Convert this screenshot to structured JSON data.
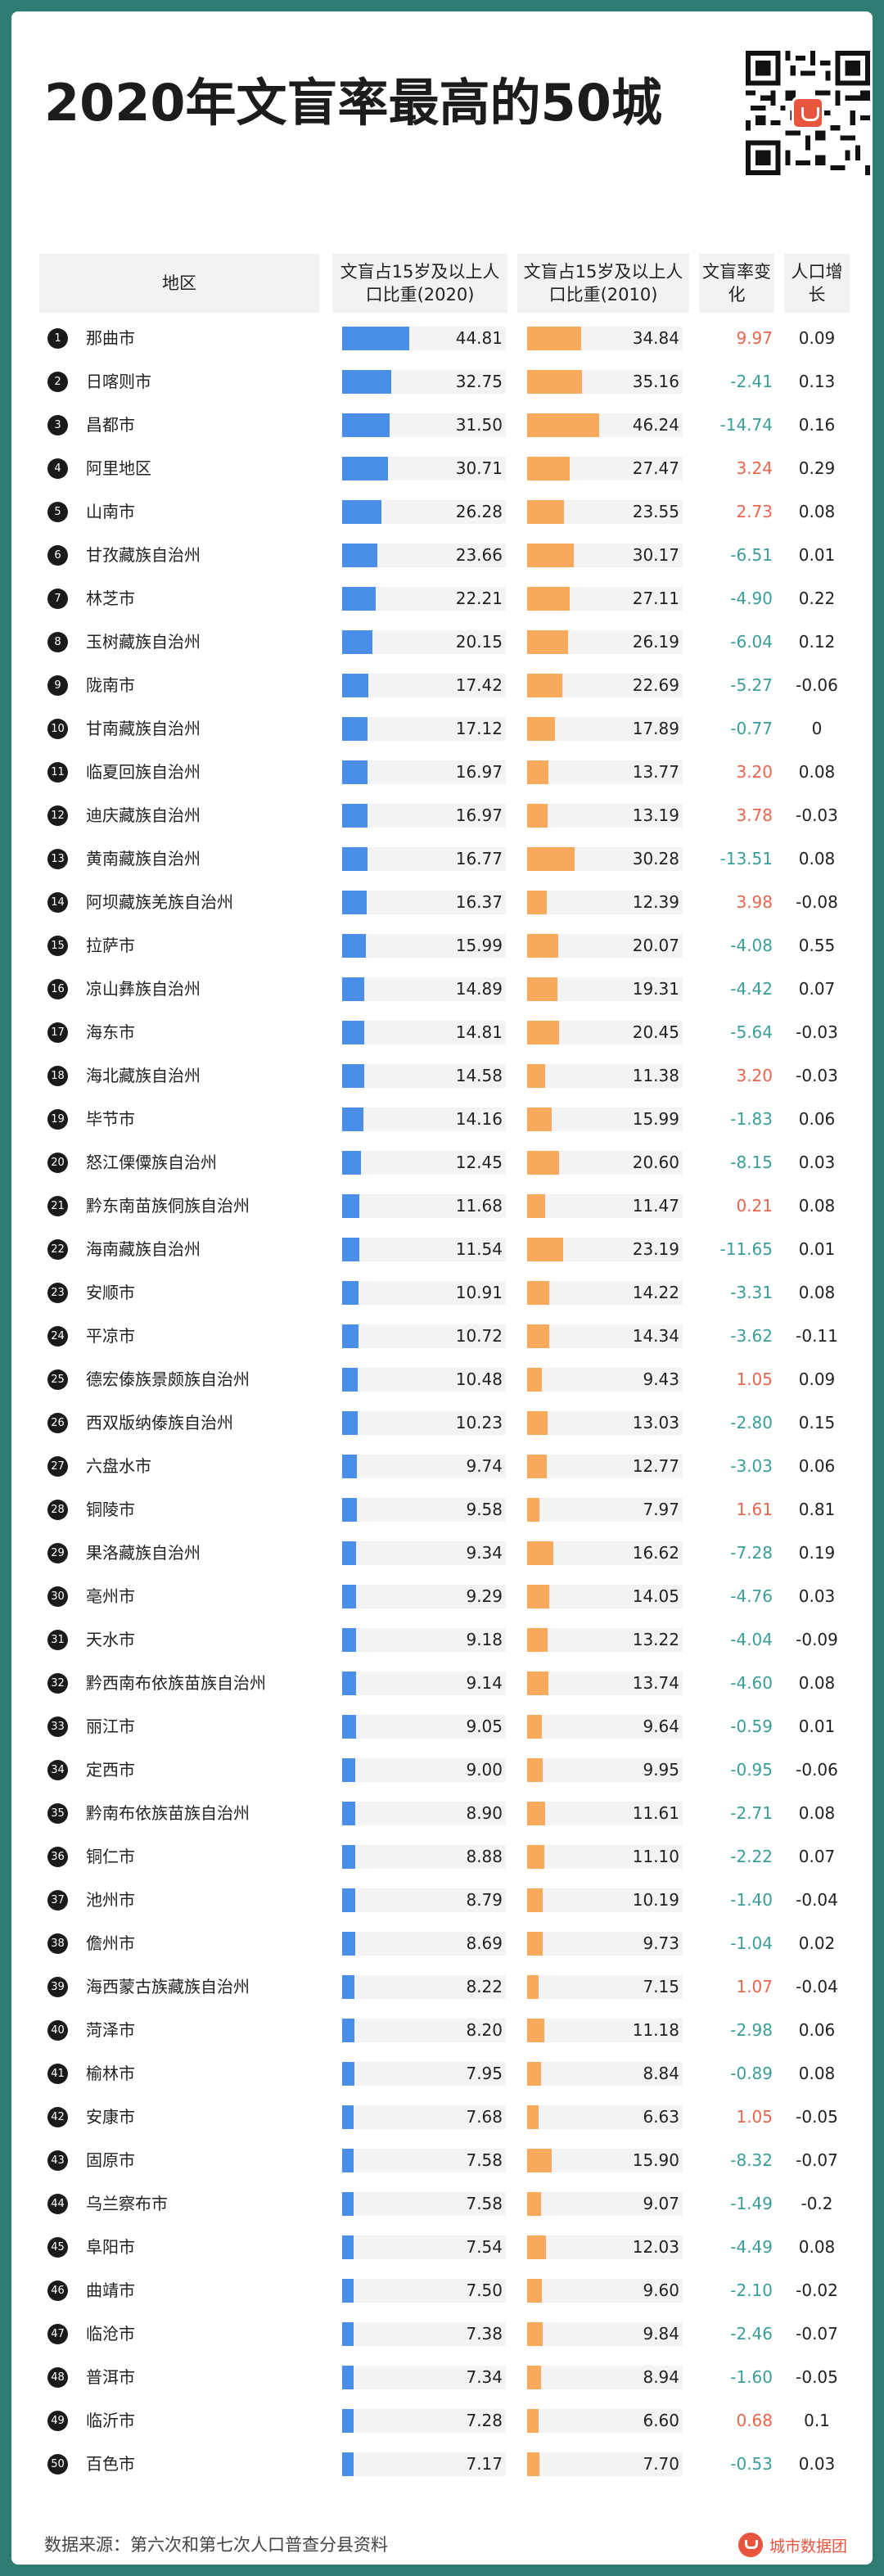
{
  "title": "2020年文盲率最高的50城",
  "table_headers": {
    "region": "地区",
    "rate_2020": "文盲占15岁及以上人口比重(2020)",
    "rate_2010": "文盲占15岁及以上人口比重(2010)",
    "change": "文盲率变化",
    "growth": "人口增长"
  },
  "footer": {
    "source": "数据来源：第六次和第七次人口普查分县资料",
    "brand": "城市数据团"
  },
  "icons": {
    "qr": "qr-code-icon",
    "brand": "city-data-team-logo-icon"
  },
  "colors": {
    "bar_2020": "#4a8fe7",
    "bar_2010": "#f9a95b",
    "negative_change": "#3a9e98",
    "positive_change": "#e8664e",
    "frame": "#2f7d72"
  },
  "chart_data": {
    "type": "table",
    "title": "2020年文盲率最高的50城",
    "columns": [
      "地区",
      "文盲占15岁及以上人口比重(2020)",
      "文盲占15岁及以上人口比重(2010)",
      "文盲率变化",
      "人口增长"
    ],
    "rows": [
      {
        "rank": "1",
        "city": "那曲市",
        "v2020": "44.81",
        "v2010": "34.84",
        "change": "9.97",
        "growth": "0.09"
      },
      {
        "rank": "2",
        "city": "日喀则市",
        "v2020": "32.75",
        "v2010": "35.16",
        "change": "-2.41",
        "growth": "0.13"
      },
      {
        "rank": "3",
        "city": "昌都市",
        "v2020": "31.50",
        "v2010": "46.24",
        "change": "-14.74",
        "growth": "0.16"
      },
      {
        "rank": "4",
        "city": "阿里地区",
        "v2020": "30.71",
        "v2010": "27.47",
        "change": "3.24",
        "growth": "0.29"
      },
      {
        "rank": "5",
        "city": "山南市",
        "v2020": "26.28",
        "v2010": "23.55",
        "change": "2.73",
        "growth": "0.08"
      },
      {
        "rank": "6",
        "city": "甘孜藏族自治州",
        "v2020": "23.66",
        "v2010": "30.17",
        "change": "-6.51",
        "growth": "0.01"
      },
      {
        "rank": "7",
        "city": "林芝市",
        "v2020": "22.21",
        "v2010": "27.11",
        "change": "-4.90",
        "growth": "0.22"
      },
      {
        "rank": "8",
        "city": "玉树藏族自治州",
        "v2020": "20.15",
        "v2010": "26.19",
        "change": "-6.04",
        "growth": "0.12"
      },
      {
        "rank": "9",
        "city": "陇南市",
        "v2020": "17.42",
        "v2010": "22.69",
        "change": "-5.27",
        "growth": "-0.06"
      },
      {
        "rank": "10",
        "city": "甘南藏族自治州",
        "v2020": "17.12",
        "v2010": "17.89",
        "change": "-0.77",
        "growth": "0"
      },
      {
        "rank": "11",
        "city": "临夏回族自治州",
        "v2020": "16.97",
        "v2010": "13.77",
        "change": "3.20",
        "growth": "0.08"
      },
      {
        "rank": "12",
        "city": "迪庆藏族自治州",
        "v2020": "16.97",
        "v2010": "13.19",
        "change": "3.78",
        "growth": "-0.03"
      },
      {
        "rank": "13",
        "city": "黄南藏族自治州",
        "v2020": "16.77",
        "v2010": "30.28",
        "change": "-13.51",
        "growth": "0.08"
      },
      {
        "rank": "14",
        "city": "阿坝藏族羌族自治州",
        "v2020": "16.37",
        "v2010": "12.39",
        "change": "3.98",
        "growth": "-0.08"
      },
      {
        "rank": "15",
        "city": "拉萨市",
        "v2020": "15.99",
        "v2010": "20.07",
        "change": "-4.08",
        "growth": "0.55"
      },
      {
        "rank": "16",
        "city": "凉山彝族自治州",
        "v2020": "14.89",
        "v2010": "19.31",
        "change": "-4.42",
        "growth": "0.07"
      },
      {
        "rank": "17",
        "city": "海东市",
        "v2020": "14.81",
        "v2010": "20.45",
        "change": "-5.64",
        "growth": "-0.03"
      },
      {
        "rank": "18",
        "city": "海北藏族自治州",
        "v2020": "14.58",
        "v2010": "11.38",
        "change": "3.20",
        "growth": "-0.03"
      },
      {
        "rank": "19",
        "city": "毕节市",
        "v2020": "14.16",
        "v2010": "15.99",
        "change": "-1.83",
        "growth": "0.06"
      },
      {
        "rank": "20",
        "city": "怒江傈僳族自治州",
        "v2020": "12.45",
        "v2010": "20.60",
        "change": "-8.15",
        "growth": "0.03"
      },
      {
        "rank": "21",
        "city": "黔东南苗族侗族自治州",
        "v2020": "11.68",
        "v2010": "11.47",
        "change": "0.21",
        "growth": "0.08"
      },
      {
        "rank": "22",
        "city": "海南藏族自治州",
        "v2020": "11.54",
        "v2010": "23.19",
        "change": "-11.65",
        "growth": "0.01"
      },
      {
        "rank": "23",
        "city": "安顺市",
        "v2020": "10.91",
        "v2010": "14.22",
        "change": "-3.31",
        "growth": "0.08"
      },
      {
        "rank": "24",
        "city": "平凉市",
        "v2020": "10.72",
        "v2010": "14.34",
        "change": "-3.62",
        "growth": "-0.11"
      },
      {
        "rank": "25",
        "city": "德宏傣族景颇族自治州",
        "v2020": "10.48",
        "v2010": "9.43",
        "change": "1.05",
        "growth": "0.09"
      },
      {
        "rank": "26",
        "city": "西双版纳傣族自治州",
        "v2020": "10.23",
        "v2010": "13.03",
        "change": "-2.80",
        "growth": "0.15"
      },
      {
        "rank": "27",
        "city": "六盘水市",
        "v2020": "9.74",
        "v2010": "12.77",
        "change": "-3.03",
        "growth": "0.06"
      },
      {
        "rank": "28",
        "city": "铜陵市",
        "v2020": "9.58",
        "v2010": "7.97",
        "change": "1.61",
        "growth": "0.81"
      },
      {
        "rank": "29",
        "city": "果洛藏族自治州",
        "v2020": "9.34",
        "v2010": "16.62",
        "change": "-7.28",
        "growth": "0.19"
      },
      {
        "rank": "30",
        "city": "亳州市",
        "v2020": "9.29",
        "v2010": "14.05",
        "change": "-4.76",
        "growth": "0.03"
      },
      {
        "rank": "31",
        "city": "天水市",
        "v2020": "9.18",
        "v2010": "13.22",
        "change": "-4.04",
        "growth": "-0.09"
      },
      {
        "rank": "32",
        "city": "黔西南布依族苗族自治州",
        "v2020": "9.14",
        "v2010": "13.74",
        "change": "-4.60",
        "growth": "0.08"
      },
      {
        "rank": "33",
        "city": "丽江市",
        "v2020": "9.05",
        "v2010": "9.64",
        "change": "-0.59",
        "growth": "0.01"
      },
      {
        "rank": "34",
        "city": "定西市",
        "v2020": "9.00",
        "v2010": "9.95",
        "change": "-0.95",
        "growth": "-0.06"
      },
      {
        "rank": "35",
        "city": "黔南布依族苗族自治州",
        "v2020": "8.90",
        "v2010": "11.61",
        "change": "-2.71",
        "growth": "0.08"
      },
      {
        "rank": "36",
        "city": "铜仁市",
        "v2020": "8.88",
        "v2010": "11.10",
        "change": "-2.22",
        "growth": "0.07"
      },
      {
        "rank": "37",
        "city": "池州市",
        "v2020": "8.79",
        "v2010": "10.19",
        "change": "-1.40",
        "growth": "-0.04"
      },
      {
        "rank": "38",
        "city": "儋州市",
        "v2020": "8.69",
        "v2010": "9.73",
        "change": "-1.04",
        "growth": "0.02"
      },
      {
        "rank": "39",
        "city": "海西蒙古族藏族自治州",
        "v2020": "8.22",
        "v2010": "7.15",
        "change": "1.07",
        "growth": "-0.04"
      },
      {
        "rank": "40",
        "city": "菏泽市",
        "v2020": "8.20",
        "v2010": "11.18",
        "change": "-2.98",
        "growth": "0.06"
      },
      {
        "rank": "41",
        "city": "榆林市",
        "v2020": "7.95",
        "v2010": "8.84",
        "change": "-0.89",
        "growth": "0.08"
      },
      {
        "rank": "42",
        "city": "安康市",
        "v2020": "7.68",
        "v2010": "6.63",
        "change": "1.05",
        "growth": "-0.05"
      },
      {
        "rank": "43",
        "city": "固原市",
        "v2020": "7.58",
        "v2010": "15.90",
        "change": "-8.32",
        "growth": "-0.07"
      },
      {
        "rank": "44",
        "city": "乌兰察布市",
        "v2020": "7.58",
        "v2010": "9.07",
        "change": "-1.49",
        "growth": "-0.2"
      },
      {
        "rank": "45",
        "city": "阜阳市",
        "v2020": "7.54",
        "v2010": "12.03",
        "change": "-4.49",
        "growth": "0.08"
      },
      {
        "rank": "46",
        "city": "曲靖市",
        "v2020": "7.50",
        "v2010": "9.60",
        "change": "-2.10",
        "growth": "-0.02"
      },
      {
        "rank": "47",
        "city": "临沧市",
        "v2020": "7.38",
        "v2010": "9.84",
        "change": "-2.46",
        "growth": "-0.07"
      },
      {
        "rank": "48",
        "city": "普洱市",
        "v2020": "7.34",
        "v2010": "8.94",
        "change": "-1.60",
        "growth": "-0.05"
      },
      {
        "rank": "49",
        "city": "临沂市",
        "v2020": "7.28",
        "v2010": "6.60",
        "change": "0.68",
        "growth": "0.1"
      },
      {
        "rank": "50",
        "city": "百色市",
        "v2020": "7.17",
        "v2010": "7.70",
        "change": "-0.53",
        "growth": "0.03"
      }
    ]
  }
}
